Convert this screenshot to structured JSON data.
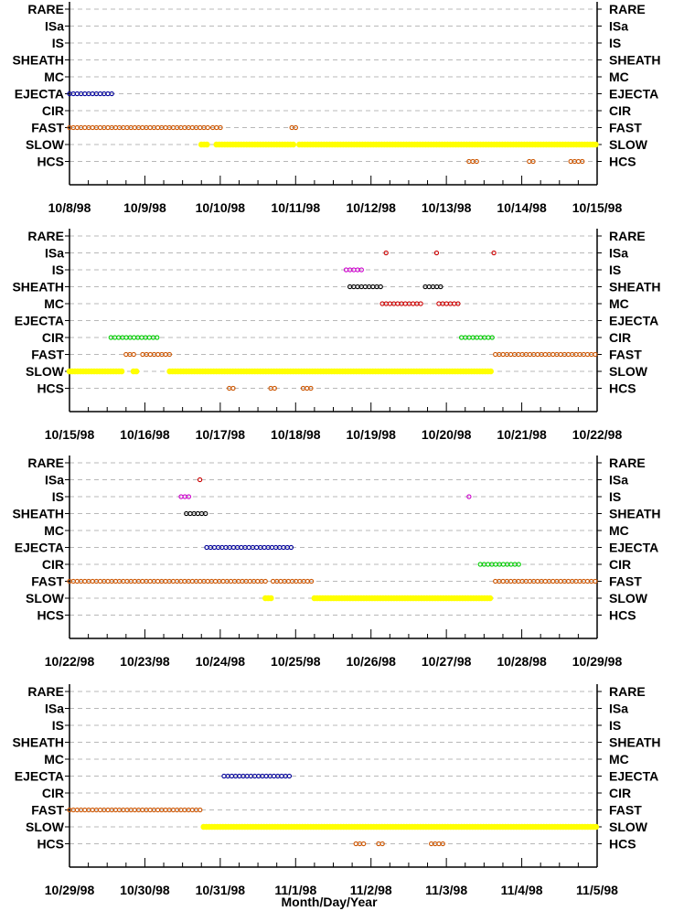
{
  "chart_data": {
    "type": "scatter",
    "xlabel": "Month/Day/Year",
    "categories": [
      "RARE",
      "ISa",
      "IS",
      "SHEATH",
      "MC",
      "EJECTA",
      "CIR",
      "FAST",
      "SLOW",
      "HCS"
    ],
    "colors": {
      "ISa": "#cc0000",
      "IS": "#cc00cc",
      "SHEATH": "#000000",
      "MC": "#cc0000",
      "EJECTA": "#000099",
      "CIR": "#00cc00",
      "FAST": "#cc5500",
      "SLOW": "#ffff00",
      "HCS": "#cc5500"
    },
    "grid": "dashed horizontal lines",
    "panels": [
      {
        "xticks": [
          "10/8/98",
          "10/9/98",
          "10/10/98",
          "10/11/98",
          "10/12/98",
          "10/13/98",
          "10/14/98",
          "10/15/98"
        ],
        "xlim": [
          0,
          7
        ],
        "intervals": [
          {
            "category": "EJECTA",
            "start": 0.0,
            "end": 0.6
          },
          {
            "category": "FAST",
            "start": 0.0,
            "end": 1.85
          },
          {
            "category": "FAST",
            "start": 1.9,
            "end": 2.05
          },
          {
            "category": "FAST",
            "start": 2.95,
            "end": 3.05
          },
          {
            "category": "SLOW",
            "start": 1.75,
            "end": 1.85
          },
          {
            "category": "SLOW",
            "start": 1.95,
            "end": 3.0
          },
          {
            "category": "SLOW",
            "start": 3.05,
            "end": 7.0
          },
          {
            "category": "HCS",
            "start": 5.3,
            "end": 5.45
          },
          {
            "category": "HCS",
            "start": 6.1,
            "end": 6.2
          },
          {
            "category": "HCS",
            "start": 6.65,
            "end": 6.85
          }
        ]
      },
      {
        "xticks": [
          "10/15/98",
          "10/16/98",
          "10/17/98",
          "10/18/98",
          "10/19/98",
          "10/20/98",
          "10/21/98",
          "10/22/98"
        ],
        "xlim": [
          0,
          7
        ],
        "intervals": [
          {
            "category": "ISa",
            "start": 4.2,
            "end": 4.2
          },
          {
            "category": "ISa",
            "start": 4.87,
            "end": 4.87
          },
          {
            "category": "ISa",
            "start": 5.63,
            "end": 5.63
          },
          {
            "category": "IS",
            "start": 3.67,
            "end": 3.88
          },
          {
            "category": "SHEATH",
            "start": 3.72,
            "end": 4.15
          },
          {
            "category": "SHEATH",
            "start": 4.72,
            "end": 4.95
          },
          {
            "category": "MC",
            "start": 4.15,
            "end": 4.7
          },
          {
            "category": "MC",
            "start": 4.9,
            "end": 5.2
          },
          {
            "category": "CIR",
            "start": 0.55,
            "end": 1.2
          },
          {
            "category": "CIR",
            "start": 5.2,
            "end": 5.62
          },
          {
            "category": "FAST",
            "start": 0.75,
            "end": 0.88
          },
          {
            "category": "FAST",
            "start": 0.97,
            "end": 1.33
          },
          {
            "category": "FAST",
            "start": 5.65,
            "end": 7.0
          },
          {
            "category": "SLOW",
            "start": 0.0,
            "end": 0.72
          },
          {
            "category": "SLOW",
            "start": 0.85,
            "end": 0.92
          },
          {
            "category": "SLOW",
            "start": 1.33,
            "end": 5.6
          },
          {
            "category": "HCS",
            "start": 2.12,
            "end": 2.2
          },
          {
            "category": "HCS",
            "start": 2.67,
            "end": 2.75
          },
          {
            "category": "HCS",
            "start": 3.1,
            "end": 3.25
          }
        ]
      },
      {
        "xticks": [
          "10/22/98",
          "10/23/98",
          "10/24/98",
          "10/25/98",
          "10/26/98",
          "10/27/98",
          "10/28/98",
          "10/29/98"
        ],
        "xlim": [
          0,
          7
        ],
        "intervals": [
          {
            "category": "ISa",
            "start": 1.73,
            "end": 1.73
          },
          {
            "category": "IS",
            "start": 1.48,
            "end": 1.6
          },
          {
            "category": "IS",
            "start": 5.3,
            "end": 5.3
          },
          {
            "category": "SHEATH",
            "start": 1.55,
            "end": 1.82
          },
          {
            "category": "EJECTA",
            "start": 1.82,
            "end": 2.95
          },
          {
            "category": "CIR",
            "start": 5.45,
            "end": 6.0
          },
          {
            "category": "FAST",
            "start": 0.0,
            "end": 2.6
          },
          {
            "category": "FAST",
            "start": 2.7,
            "end": 3.22
          },
          {
            "category": "FAST",
            "start": 5.65,
            "end": 7.0
          },
          {
            "category": "SLOW",
            "start": 2.6,
            "end": 2.68
          },
          {
            "category": "SLOW",
            "start": 3.25,
            "end": 5.6
          }
        ]
      },
      {
        "xticks": [
          "10/29/98",
          "10/30/98",
          "10/31/98",
          "11/1/98",
          "11/2/98",
          "11/3/98",
          "11/4/98",
          "11/5/98"
        ],
        "xlim": [
          0,
          7
        ],
        "intervals": [
          {
            "category": "EJECTA",
            "start": 2.05,
            "end": 2.95
          },
          {
            "category": "FAST",
            "start": 0.0,
            "end": 1.75
          },
          {
            "category": "SLOW",
            "start": 1.78,
            "end": 7.0
          },
          {
            "category": "HCS",
            "start": 3.8,
            "end": 3.93
          },
          {
            "category": "HCS",
            "start": 4.1,
            "end": 4.2
          },
          {
            "category": "HCS",
            "start": 4.8,
            "end": 4.98
          }
        ]
      }
    ]
  }
}
